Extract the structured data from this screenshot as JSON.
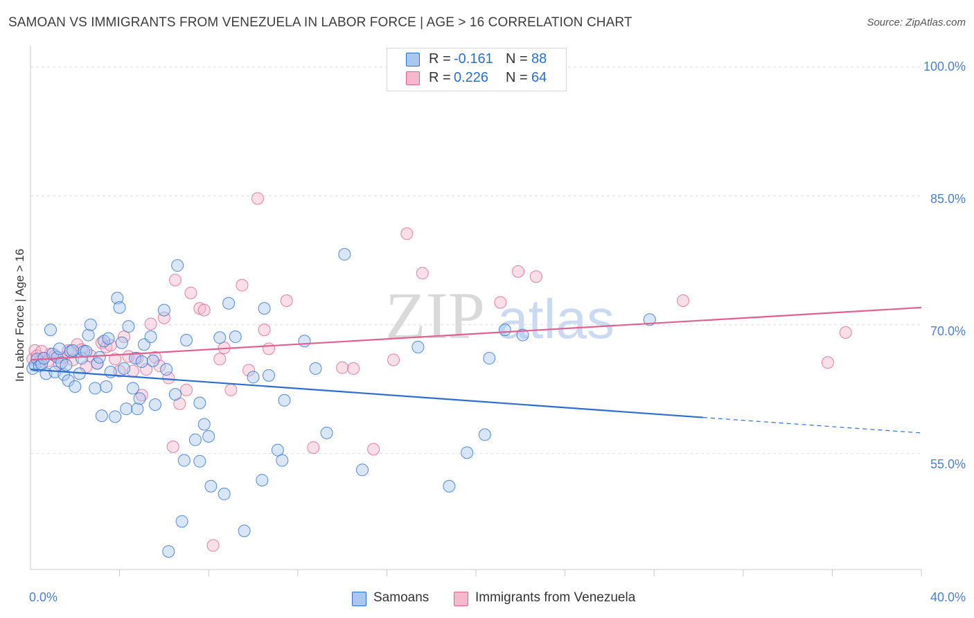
{
  "title": "SAMOAN VS IMMIGRANTS FROM VENEZUELA IN LABOR FORCE | AGE > 16 CORRELATION CHART",
  "source": "Source: ZipAtlas.com",
  "legend": {
    "samoan": {
      "r_label": "R =",
      "r_value": "-0.161",
      "n_label": "N =",
      "n_value": "88"
    },
    "venezuela": {
      "r_label": "R =",
      "r_value": "0.226",
      "n_label": "N =",
      "n_value": "64"
    }
  },
  "watermark": {
    "zip": "ZIP",
    "atlas": "atlas"
  },
  "y_axis_title": "In Labor Force | Age > 16",
  "y_ticks": [
    "100.0%",
    "85.0%",
    "70.0%",
    "55.0%"
  ],
  "x_ticks": {
    "min": "0.0%",
    "max": "40.0%"
  },
  "colors": {
    "samoan": "#2a6fd0",
    "samoan_fill": "#a9c7ef",
    "venezuela": "#e0608e",
    "venezuela_fill": "#f6b8cc",
    "tick_label": "#4a7fcf",
    "grid": "#dcdcdc"
  },
  "chart_data": {
    "type": "scatter",
    "xlim": [
      0,
      40
    ],
    "ylim": [
      41.5,
      102
    ],
    "xlabel": "",
    "ylabel": "In Labor Force | Age > 16",
    "grid": true,
    "legend_position": "top-center",
    "series": [
      {
        "name": "Samoans",
        "trend": {
          "x0": 0,
          "y0": 64.8,
          "x1": 30.2,
          "y1": 59.2,
          "dash_to_x": 40,
          "dash_to_y": 57.4
        },
        "points": [
          [
            0.1,
            64.9
          ],
          [
            0.2,
            65.3
          ],
          [
            0.3,
            66.0
          ],
          [
            0.4,
            65.2
          ],
          [
            0.5,
            65.4
          ],
          [
            0.6,
            66.1
          ],
          [
            0.7,
            64.3
          ],
          [
            0.9,
            69.4
          ],
          [
            1.0,
            66.6
          ],
          [
            1.1,
            64.5
          ],
          [
            1.2,
            66.2
          ],
          [
            1.3,
            67.2
          ],
          [
            1.4,
            65.6
          ],
          [
            1.5,
            64.2
          ],
          [
            1.6,
            65.3
          ],
          [
            1.7,
            63.5
          ],
          [
            1.8,
            66.9
          ],
          [
            1.9,
            67.0
          ],
          [
            2.0,
            62.8
          ],
          [
            2.2,
            64.3
          ],
          [
            2.3,
            66.1
          ],
          [
            2.4,
            66.9
          ],
          [
            2.6,
            68.8
          ],
          [
            2.7,
            70.0
          ],
          [
            2.9,
            62.6
          ],
          [
            3.0,
            65.5
          ],
          [
            3.1,
            66.2
          ],
          [
            3.2,
            59.4
          ],
          [
            3.3,
            68.1
          ],
          [
            3.4,
            62.8
          ],
          [
            3.5,
            68.4
          ],
          [
            3.6,
            64.5
          ],
          [
            3.8,
            59.3
          ],
          [
            3.9,
            73.1
          ],
          [
            4.0,
            72.0
          ],
          [
            4.1,
            67.9
          ],
          [
            4.2,
            64.9
          ],
          [
            4.3,
            60.2
          ],
          [
            4.4,
            69.8
          ],
          [
            4.6,
            62.6
          ],
          [
            4.7,
            66.1
          ],
          [
            4.8,
            60.2
          ],
          [
            4.9,
            61.4
          ],
          [
            5.0,
            65.7
          ],
          [
            5.1,
            67.7
          ],
          [
            5.4,
            68.6
          ],
          [
            5.6,
            60.7
          ],
          [
            6.0,
            71.7
          ],
          [
            6.1,
            64.8
          ],
          [
            6.5,
            61.9
          ],
          [
            6.6,
            76.9
          ],
          [
            6.9,
            54.2
          ],
          [
            7.0,
            68.2
          ],
          [
            7.4,
            56.6
          ],
          [
            7.6,
            60.9
          ],
          [
            7.6,
            54.1
          ],
          [
            7.8,
            58.4
          ],
          [
            8.0,
            57.0
          ],
          [
            8.1,
            51.2
          ],
          [
            8.5,
            68.5
          ],
          [
            8.7,
            50.3
          ],
          [
            8.9,
            72.5
          ],
          [
            9.2,
            68.6
          ],
          [
            9.6,
            46.0
          ],
          [
            10.0,
            63.9
          ],
          [
            10.4,
            51.9
          ],
          [
            10.5,
            71.9
          ],
          [
            10.7,
            64.1
          ],
          [
            11.1,
            55.4
          ],
          [
            11.3,
            54.2
          ],
          [
            11.4,
            61.2
          ],
          [
            12.3,
            68.1
          ],
          [
            12.8,
            64.9
          ],
          [
            13.3,
            57.4
          ],
          [
            14.1,
            78.2
          ],
          [
            14.9,
            53.1
          ],
          [
            17.4,
            67.4
          ],
          [
            18.8,
            51.2
          ],
          [
            19.6,
            55.1
          ],
          [
            20.4,
            57.2
          ],
          [
            20.6,
            66.1
          ],
          [
            21.3,
            69.4
          ],
          [
            22.1,
            68.8
          ],
          [
            27.8,
            70.6
          ],
          [
            6.2,
            43.6
          ],
          [
            6.8,
            47.1
          ],
          [
            5.5,
            65.8
          ],
          [
            2.5,
            66.9
          ]
        ]
      },
      {
        "name": "Immigrants from Venezuela",
        "trend": {
          "x0": 0,
          "y0": 65.9,
          "x1": 40,
          "y1": 72.0
        },
        "points": [
          [
            0.1,
            66.0
          ],
          [
            0.2,
            67.0
          ],
          [
            0.3,
            66.4
          ],
          [
            0.4,
            65.7
          ],
          [
            0.5,
            66.9
          ],
          [
            0.6,
            66.1
          ],
          [
            0.8,
            65.8
          ],
          [
            0.9,
            66.6
          ],
          [
            1.1,
            66.4
          ],
          [
            1.3,
            65.4
          ],
          [
            1.5,
            66.2
          ],
          [
            1.7,
            67.0
          ],
          [
            1.9,
            65.9
          ],
          [
            2.1,
            67.7
          ],
          [
            2.3,
            67.1
          ],
          [
            2.5,
            65.1
          ],
          [
            2.7,
            66.4
          ],
          [
            3.0,
            65.5
          ],
          [
            3.2,
            67.9
          ],
          [
            3.4,
            67.4
          ],
          [
            3.6,
            67.6
          ],
          [
            3.8,
            66.0
          ],
          [
            4.0,
            64.6
          ],
          [
            4.2,
            68.6
          ],
          [
            4.4,
            66.3
          ],
          [
            4.6,
            64.6
          ],
          [
            4.8,
            66.1
          ],
          [
            5.0,
            61.8
          ],
          [
            5.2,
            64.8
          ],
          [
            5.4,
            70.1
          ],
          [
            5.6,
            66.2
          ],
          [
            5.8,
            65.2
          ],
          [
            6.0,
            70.8
          ],
          [
            6.2,
            63.8
          ],
          [
            6.4,
            55.8
          ],
          [
            6.5,
            75.2
          ],
          [
            6.7,
            60.8
          ],
          [
            7.0,
            62.4
          ],
          [
            7.2,
            73.7
          ],
          [
            7.6,
            71.9
          ],
          [
            7.8,
            71.7
          ],
          [
            8.2,
            44.3
          ],
          [
            8.5,
            66.0
          ],
          [
            8.7,
            67.3
          ],
          [
            9.0,
            62.4
          ],
          [
            9.5,
            74.6
          ],
          [
            9.8,
            64.7
          ],
          [
            10.2,
            84.7
          ],
          [
            10.5,
            69.4
          ],
          [
            10.7,
            67.2
          ],
          [
            11.5,
            72.8
          ],
          [
            12.7,
            55.7
          ],
          [
            14.0,
            65.0
          ],
          [
            14.5,
            64.9
          ],
          [
            15.4,
            55.5
          ],
          [
            16.3,
            65.9
          ],
          [
            16.9,
            80.6
          ],
          [
            17.6,
            76.0
          ],
          [
            21.1,
            72.6
          ],
          [
            21.9,
            76.2
          ],
          [
            22.7,
            75.6
          ],
          [
            29.3,
            72.8
          ],
          [
            35.8,
            65.6
          ],
          [
            36.6,
            69.1
          ]
        ]
      }
    ]
  }
}
